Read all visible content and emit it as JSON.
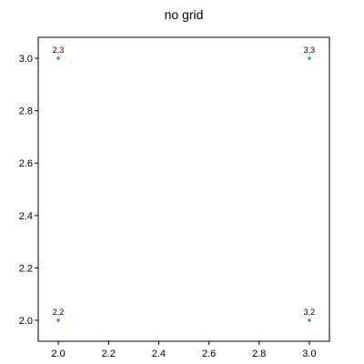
{
  "chart_data": {
    "type": "scatter",
    "title": "no grid",
    "xlabel": "",
    "ylabel": "",
    "grid": false,
    "xlim": [
      1.92,
      3.08
    ],
    "ylim": [
      1.92,
      3.08
    ],
    "xticks": [
      2.0,
      2.2,
      2.4,
      2.6,
      2.8,
      3.0
    ],
    "yticks": [
      2.0,
      2.2,
      2.4,
      2.6,
      2.8,
      3.0
    ],
    "xtick_labels": [
      "2.0",
      "2.2",
      "2.4",
      "2.6",
      "2.8",
      "3.0"
    ],
    "ytick_labels": [
      "2.0",
      "2.2",
      "2.4",
      "2.6",
      "2.8",
      "3.0"
    ],
    "point_color": "#4a90d9",
    "points": [
      {
        "x": 2,
        "y": 3,
        "label": "2,3"
      },
      {
        "x": 3,
        "y": 3,
        "label": "3,3"
      },
      {
        "x": 2,
        "y": 2,
        "label": "2,2"
      },
      {
        "x": 3,
        "y": 2,
        "label": "3,2"
      }
    ]
  }
}
